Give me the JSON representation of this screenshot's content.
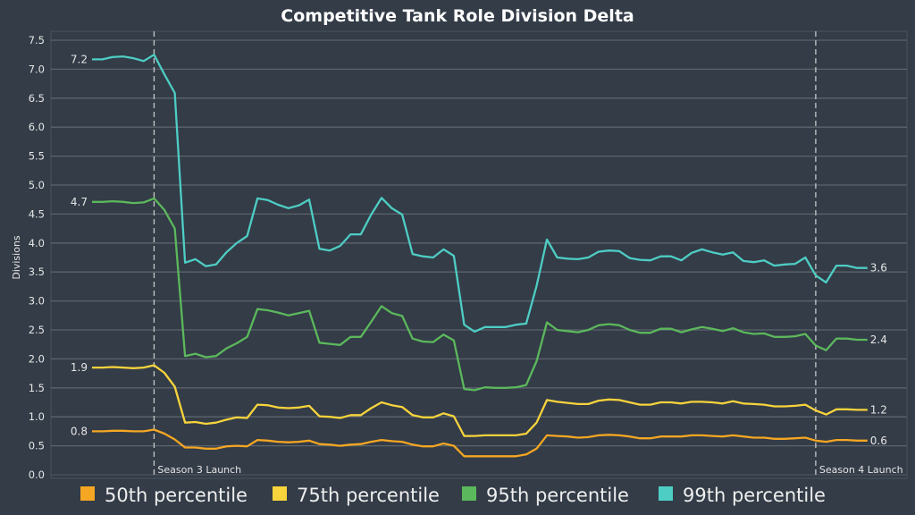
{
  "chart_data": {
    "type": "line",
    "title": "Competitive Tank Role Division Delta",
    "xlabel": "",
    "ylabel": "Divisions",
    "ylim": [
      0,
      7.5
    ],
    "yticks": [
      "0.0",
      "0.5",
      "1.0",
      "1.5",
      "2.0",
      "2.5",
      "3.0",
      "3.5",
      "4.0",
      "4.5",
      "5.0",
      "5.5",
      "6.0",
      "6.5",
      "7.0",
      "7.5"
    ],
    "grid": "horizontal",
    "legend_position": "bottom",
    "background": "#333c47",
    "annotations": [
      {
        "label": "Season 3 Launch",
        "x_index": 6
      },
      {
        "label": "Season 4 Launch",
        "x_index": 70
      }
    ],
    "series": [
      {
        "name": "50th percentile",
        "color": "#f5a623",
        "start_label": "0.8",
        "end_label": "0.6",
        "values": [
          0.75,
          0.75,
          0.76,
          0.76,
          0.75,
          0.75,
          0.78,
          0.71,
          0.61,
          0.47,
          0.47,
          0.45,
          0.45,
          0.49,
          0.5,
          0.49,
          0.6,
          0.59,
          0.57,
          0.56,
          0.57,
          0.59,
          0.53,
          0.52,
          0.5,
          0.52,
          0.53,
          0.57,
          0.6,
          0.58,
          0.57,
          0.52,
          0.49,
          0.49,
          0.54,
          0.5,
          0.32,
          0.32,
          0.32,
          0.32,
          0.32,
          0.32,
          0.35,
          0.45,
          0.68,
          0.67,
          0.66,
          0.64,
          0.65,
          0.68,
          0.69,
          0.68,
          0.66,
          0.63,
          0.63,
          0.66,
          0.66,
          0.66,
          0.68,
          0.68,
          0.67,
          0.66,
          0.68,
          0.66,
          0.64,
          0.64,
          0.62,
          0.62,
          0.63,
          0.64,
          0.59,
          0.57,
          0.6,
          0.6,
          0.59,
          0.59
        ]
      },
      {
        "name": "75th percentile",
        "color": "#f7d33c",
        "start_label": "1.9",
        "end_label": "1.2",
        "values": [
          1.85,
          1.85,
          1.86,
          1.85,
          1.84,
          1.85,
          1.89,
          1.76,
          1.52,
          0.9,
          0.91,
          0.88,
          0.9,
          0.95,
          0.99,
          0.98,
          1.21,
          1.2,
          1.16,
          1.15,
          1.16,
          1.19,
          1.01,
          1.0,
          0.98,
          1.03,
          1.03,
          1.15,
          1.25,
          1.2,
          1.17,
          1.03,
          0.99,
          0.99,
          1.06,
          1.01,
          0.67,
          0.67,
          0.68,
          0.68,
          0.68,
          0.68,
          0.71,
          0.9,
          1.29,
          1.26,
          1.24,
          1.22,
          1.22,
          1.28,
          1.3,
          1.29,
          1.25,
          1.21,
          1.21,
          1.25,
          1.25,
          1.23,
          1.26,
          1.26,
          1.25,
          1.23,
          1.27,
          1.23,
          1.22,
          1.21,
          1.18,
          1.18,
          1.19,
          1.21,
          1.11,
          1.04,
          1.13,
          1.13,
          1.12,
          1.12
        ]
      },
      {
        "name": "95th percentile",
        "color": "#5cb85c",
        "start_label": "4.7",
        "end_label": "2.4",
        "values": [
          4.71,
          4.71,
          4.72,
          4.71,
          4.69,
          4.7,
          4.77,
          4.57,
          4.25,
          2.05,
          2.09,
          2.03,
          2.05,
          2.18,
          2.27,
          2.38,
          2.86,
          2.84,
          2.8,
          2.75,
          2.79,
          2.83,
          2.28,
          2.26,
          2.24,
          2.38,
          2.38,
          2.64,
          2.91,
          2.79,
          2.74,
          2.35,
          2.3,
          2.29,
          2.42,
          2.32,
          1.48,
          1.46,
          1.51,
          1.5,
          1.5,
          1.51,
          1.55,
          1.96,
          2.63,
          2.5,
          2.48,
          2.46,
          2.5,
          2.58,
          2.6,
          2.58,
          2.5,
          2.45,
          2.45,
          2.52,
          2.52,
          2.46,
          2.51,
          2.55,
          2.52,
          2.48,
          2.53,
          2.46,
          2.43,
          2.44,
          2.38,
          2.38,
          2.39,
          2.43,
          2.23,
          2.15,
          2.35,
          2.35,
          2.33,
          2.33
        ]
      },
      {
        "name": "99th percentile",
        "color": "#4ecdc4",
        "start_label": "7.2",
        "end_label": "3.6",
        "values": [
          7.17,
          7.17,
          7.21,
          7.22,
          7.19,
          7.14,
          7.25,
          6.91,
          6.59,
          3.66,
          3.72,
          3.6,
          3.63,
          3.84,
          4.0,
          4.12,
          4.77,
          4.74,
          4.66,
          4.6,
          4.65,
          4.75,
          3.9,
          3.87,
          3.95,
          4.15,
          4.15,
          4.49,
          4.78,
          4.6,
          4.49,
          3.81,
          3.77,
          3.75,
          3.89,
          3.78,
          2.59,
          2.47,
          2.55,
          2.55,
          2.55,
          2.59,
          2.61,
          3.26,
          4.06,
          3.75,
          3.73,
          3.72,
          3.75,
          3.85,
          3.87,
          3.86,
          3.74,
          3.71,
          3.7,
          3.77,
          3.77,
          3.7,
          3.83,
          3.89,
          3.84,
          3.8,
          3.84,
          3.69,
          3.67,
          3.7,
          3.61,
          3.63,
          3.64,
          3.75,
          3.44,
          3.32,
          3.61,
          3.61,
          3.57,
          3.57
        ]
      }
    ]
  }
}
